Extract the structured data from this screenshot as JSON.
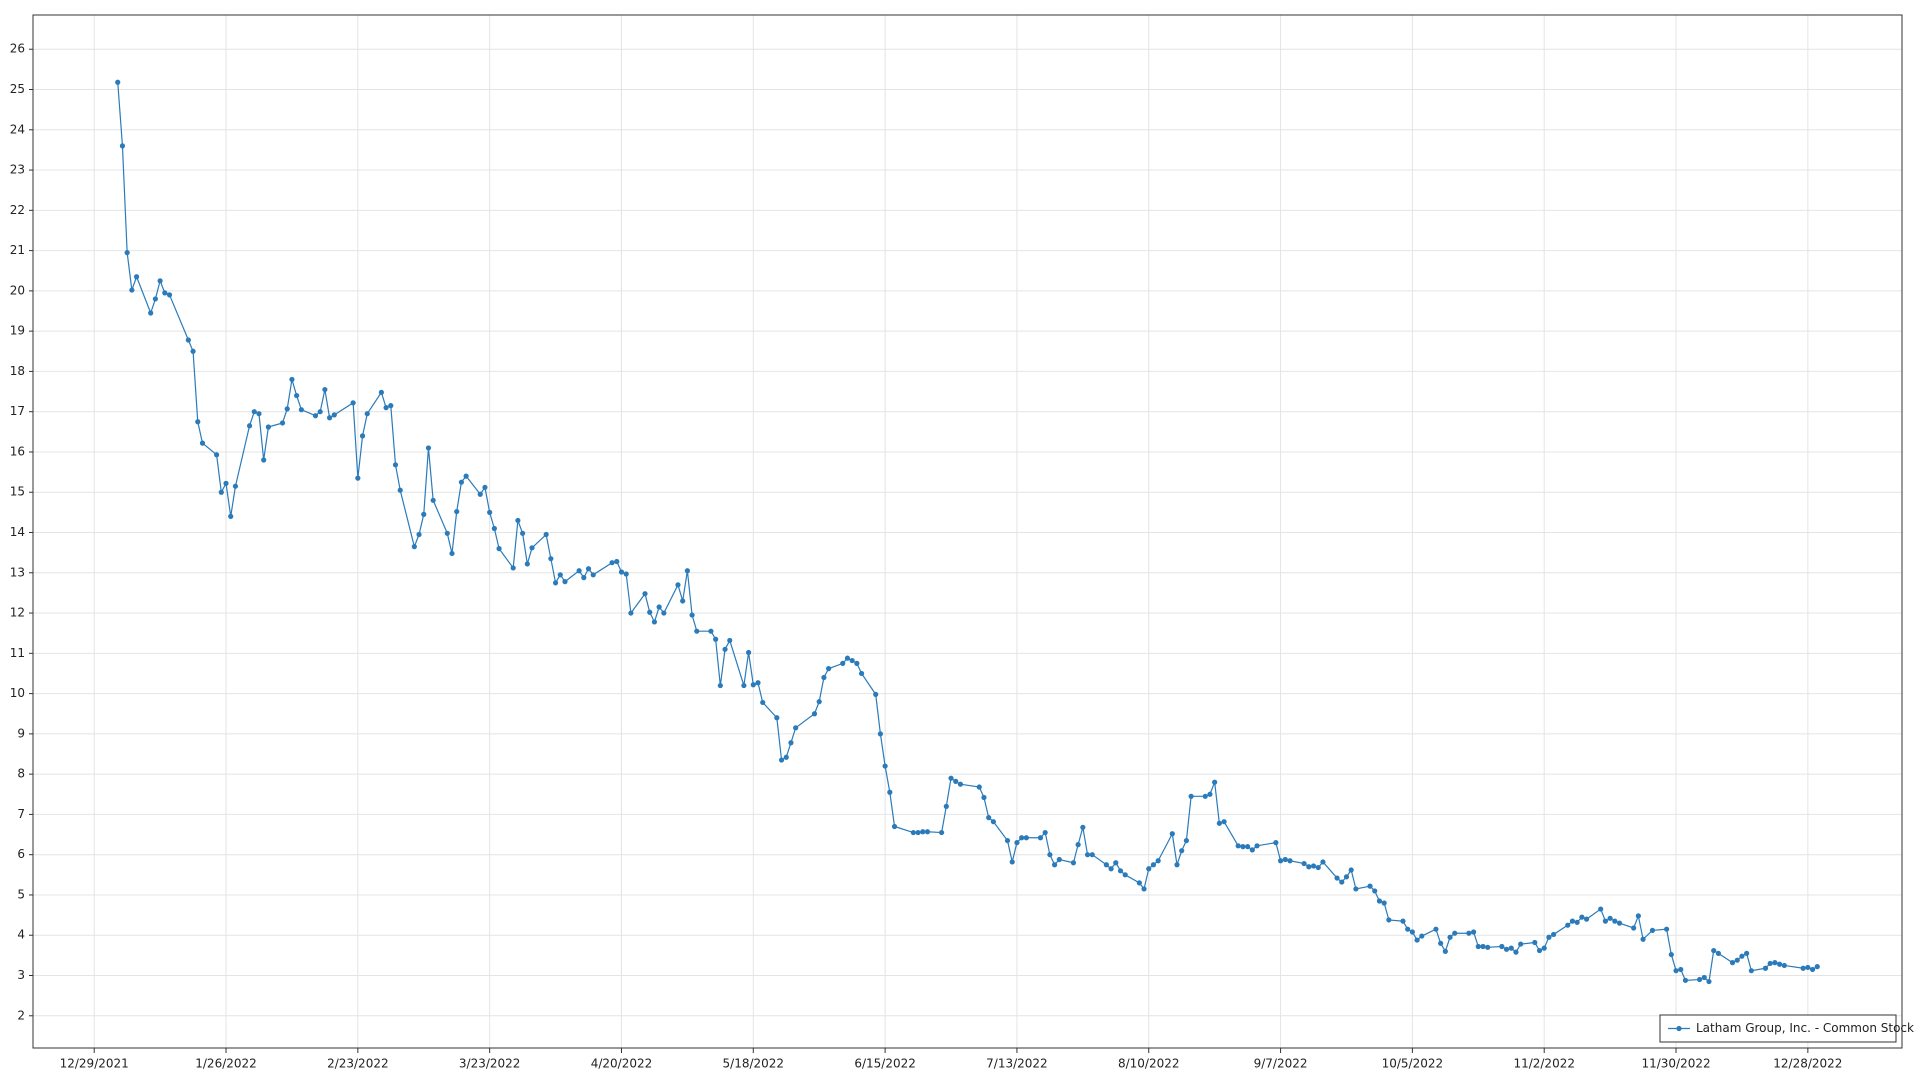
{
  "chart_data": {
    "type": "line",
    "x": [
      "2022-01-03",
      "2022-01-04",
      "2022-01-05",
      "2022-01-06",
      "2022-01-07",
      "2022-01-10",
      "2022-01-11",
      "2022-01-12",
      "2022-01-13",
      "2022-01-14",
      "2022-01-18",
      "2022-01-19",
      "2022-01-20",
      "2022-01-21",
      "2022-01-24",
      "2022-01-25",
      "2022-01-26",
      "2022-01-27",
      "2022-01-28",
      "2022-01-31",
      "2022-02-01",
      "2022-02-02",
      "2022-02-03",
      "2022-02-04",
      "2022-02-07",
      "2022-02-08",
      "2022-02-09",
      "2022-02-10",
      "2022-02-11",
      "2022-02-14",
      "2022-02-15",
      "2022-02-16",
      "2022-02-17",
      "2022-02-18",
      "2022-02-22",
      "2022-02-23",
      "2022-02-24",
      "2022-02-25",
      "2022-02-28",
      "2022-03-01",
      "2022-03-02",
      "2022-03-03",
      "2022-03-04",
      "2022-03-07",
      "2022-03-08",
      "2022-03-09",
      "2022-03-10",
      "2022-03-11",
      "2022-03-14",
      "2022-03-15",
      "2022-03-16",
      "2022-03-17",
      "2022-03-18",
      "2022-03-21",
      "2022-03-22",
      "2022-03-23",
      "2022-03-24",
      "2022-03-25",
      "2022-03-28",
      "2022-03-29",
      "2022-03-30",
      "2022-03-31",
      "2022-04-01",
      "2022-04-04",
      "2022-04-05",
      "2022-04-06",
      "2022-04-07",
      "2022-04-08",
      "2022-04-11",
      "2022-04-12",
      "2022-04-13",
      "2022-04-14",
      "2022-04-18",
      "2022-04-19",
      "2022-04-20",
      "2022-04-21",
      "2022-04-22",
      "2022-04-25",
      "2022-04-26",
      "2022-04-27",
      "2022-04-28",
      "2022-04-29",
      "2022-05-02",
      "2022-05-03",
      "2022-05-04",
      "2022-05-05",
      "2022-05-06",
      "2022-05-09",
      "2022-05-10",
      "2022-05-11",
      "2022-05-12",
      "2022-05-13",
      "2022-05-16",
      "2022-05-17",
      "2022-05-18",
      "2022-05-19",
      "2022-05-20",
      "2022-05-23",
      "2022-05-24",
      "2022-05-25",
      "2022-05-26",
      "2022-05-27",
      "2022-05-31",
      "2022-06-01",
      "2022-06-02",
      "2022-06-03",
      "2022-06-06",
      "2022-06-07",
      "2022-06-08",
      "2022-06-09",
      "2022-06-10",
      "2022-06-13",
      "2022-06-14",
      "2022-06-15",
      "2022-06-16",
      "2022-06-17",
      "2022-06-21",
      "2022-06-22",
      "2022-06-23",
      "2022-06-24",
      "2022-06-27",
      "2022-06-28",
      "2022-06-29",
      "2022-06-30",
      "2022-07-01",
      "2022-07-05",
      "2022-07-06",
      "2022-07-07",
      "2022-07-08",
      "2022-07-11",
      "2022-07-12",
      "2022-07-13",
      "2022-07-14",
      "2022-07-15",
      "2022-07-18",
      "2022-07-19",
      "2022-07-20",
      "2022-07-21",
      "2022-07-22",
      "2022-07-25",
      "2022-07-26",
      "2022-07-27",
      "2022-07-28",
      "2022-07-29",
      "2022-08-01",
      "2022-08-02",
      "2022-08-03",
      "2022-08-04",
      "2022-08-05",
      "2022-08-08",
      "2022-08-09",
      "2022-08-10",
      "2022-08-11",
      "2022-08-12",
      "2022-08-15",
      "2022-08-16",
      "2022-08-17",
      "2022-08-18",
      "2022-08-19",
      "2022-08-22",
      "2022-08-23",
      "2022-08-24",
      "2022-08-25",
      "2022-08-26",
      "2022-08-29",
      "2022-08-30",
      "2022-08-31",
      "2022-09-01",
      "2022-09-02",
      "2022-09-06",
      "2022-09-07",
      "2022-09-08",
      "2022-09-09",
      "2022-09-12",
      "2022-09-13",
      "2022-09-14",
      "2022-09-15",
      "2022-09-16",
      "2022-09-19",
      "2022-09-20",
      "2022-09-21",
      "2022-09-22",
      "2022-09-23",
      "2022-09-26",
      "2022-09-27",
      "2022-09-28",
      "2022-09-29",
      "2022-09-30",
      "2022-10-03",
      "2022-10-04",
      "2022-10-05",
      "2022-10-06",
      "2022-10-07",
      "2022-10-10",
      "2022-10-11",
      "2022-10-12",
      "2022-10-13",
      "2022-10-14",
      "2022-10-17",
      "2022-10-18",
      "2022-10-19",
      "2022-10-20",
      "2022-10-21",
      "2022-10-24",
      "2022-10-25",
      "2022-10-26",
      "2022-10-27",
      "2022-10-28",
      "2022-10-31",
      "2022-11-01",
      "2022-11-02",
      "2022-11-03",
      "2022-11-04",
      "2022-11-07",
      "2022-11-08",
      "2022-11-09",
      "2022-11-10",
      "2022-11-11",
      "2022-11-14",
      "2022-11-15",
      "2022-11-16",
      "2022-11-17",
      "2022-11-18",
      "2022-11-21",
      "2022-11-22",
      "2022-11-23",
      "2022-11-25",
      "2022-11-28",
      "2022-11-29",
      "2022-11-30",
      "2022-12-01",
      "2022-12-02",
      "2022-12-05",
      "2022-12-06",
      "2022-12-07",
      "2022-12-08",
      "2022-12-09",
      "2022-12-12",
      "2022-12-13",
      "2022-12-14",
      "2022-12-15",
      "2022-12-16",
      "2022-12-19",
      "2022-12-20",
      "2022-12-21",
      "2022-12-22",
      "2022-12-23",
      "2022-12-27",
      "2022-12-28",
      "2022-12-29",
      "2022-12-30"
    ],
    "series": [
      {
        "name": "Latham Group, Inc. - Common Stock",
        "color": "#2b7bba",
        "values": [
          25.18,
          23.6,
          20.95,
          20.02,
          20.35,
          19.45,
          19.8,
          20.25,
          19.95,
          19.9,
          18.78,
          18.5,
          16.75,
          16.22,
          15.93,
          15.0,
          15.22,
          14.4,
          15.15,
          16.65,
          17.0,
          16.95,
          15.8,
          16.62,
          16.72,
          17.07,
          17.8,
          17.4,
          17.05,
          16.9,
          17.0,
          17.55,
          16.85,
          16.92,
          17.22,
          15.35,
          16.4,
          16.95,
          17.48,
          17.1,
          17.15,
          15.68,
          15.05,
          13.65,
          13.95,
          14.45,
          16.1,
          14.8,
          13.98,
          13.48,
          14.52,
          15.25,
          15.4,
          14.95,
          15.12,
          14.5,
          14.1,
          13.6,
          13.12,
          14.3,
          13.98,
          13.22,
          13.62,
          13.95,
          13.35,
          12.75,
          12.95,
          12.78,
          13.05,
          12.88,
          13.1,
          12.95,
          13.25,
          13.28,
          13.02,
          12.97,
          12.0,
          12.48,
          12.02,
          11.78,
          12.15,
          12.0,
          12.7,
          12.3,
          13.05,
          11.95,
          11.55,
          11.55,
          11.35,
          10.2,
          11.1,
          11.32,
          10.2,
          11.02,
          10.22,
          10.27,
          9.78,
          9.4,
          8.35,
          8.42,
          8.78,
          9.15,
          9.5,
          9.8,
          10.4,
          10.62,
          10.75,
          10.88,
          10.82,
          10.75,
          10.5,
          9.98,
          9.0,
          8.2,
          7.55,
          6.7,
          6.55,
          6.55,
          6.57,
          6.57,
          6.55,
          7.2,
          7.9,
          7.82,
          7.75,
          7.68,
          7.42,
          6.92,
          6.82,
          6.35,
          5.82,
          6.3,
          6.42,
          6.42,
          6.42,
          6.55,
          6.0,
          5.75,
          5.88,
          5.8,
          6.25,
          6.68,
          6.0,
          6.0,
          5.75,
          5.65,
          5.8,
          5.6,
          5.5,
          5.3,
          5.15,
          5.65,
          5.75,
          5.85,
          6.52,
          5.75,
          6.1,
          6.35,
          7.45,
          7.45,
          7.5,
          7.8,
          6.78,
          6.82,
          6.22,
          6.2,
          6.2,
          6.12,
          6.22,
          6.3,
          5.85,
          5.88,
          5.85,
          5.78,
          5.7,
          5.72,
          5.68,
          5.82,
          5.42,
          5.32,
          5.45,
          5.62,
          5.15,
          5.22,
          5.1,
          4.85,
          4.8,
          4.38,
          4.35,
          4.15,
          4.08,
          3.88,
          3.98,
          4.15,
          3.8,
          3.6,
          3.95,
          4.05,
          4.05,
          4.08,
          3.72,
          3.72,
          3.7,
          3.72,
          3.65,
          3.68,
          3.58,
          3.78,
          3.82,
          3.62,
          3.68,
          3.95,
          4.02,
          4.25,
          4.35,
          4.32,
          4.45,
          4.4,
          4.65,
          4.35,
          4.42,
          4.35,
          4.3,
          4.18,
          4.48,
          3.9,
          4.12,
          4.15,
          3.52,
          3.12,
          3.15,
          2.88,
          2.9,
          2.95,
          2.85,
          3.62,
          3.55,
          3.32,
          3.38,
          3.48,
          3.55,
          3.12,
          3.18,
          3.3,
          3.32,
          3.28,
          3.25,
          3.18,
          3.2,
          3.15,
          3.22
        ]
      }
    ],
    "xlim": [
      "2021-12-16",
      "2023-01-17"
    ],
    "xticks": [
      {
        "value": "2021-12-29",
        "label": "12/29/2021"
      },
      {
        "value": "2022-01-26",
        "label": "1/26/2022"
      },
      {
        "value": "2022-02-23",
        "label": "2/23/2022"
      },
      {
        "value": "2022-03-23",
        "label": "3/23/2022"
      },
      {
        "value": "2022-04-20",
        "label": "4/20/2022"
      },
      {
        "value": "2022-05-18",
        "label": "5/18/2022"
      },
      {
        "value": "2022-06-15",
        "label": "6/15/2022"
      },
      {
        "value": "2022-07-13",
        "label": "7/13/2022"
      },
      {
        "value": "2022-08-10",
        "label": "8/10/2022"
      },
      {
        "value": "2022-09-07",
        "label": "9/7/2022"
      },
      {
        "value": "2022-10-05",
        "label": "10/5/2022"
      },
      {
        "value": "2022-11-02",
        "label": "11/2/2022"
      },
      {
        "value": "2022-11-30",
        "label": "11/30/2022"
      },
      {
        "value": "2022-12-28",
        "label": "12/28/2022"
      }
    ],
    "ylim": [
      1.2,
      26.85
    ],
    "yticks": [
      2,
      3,
      4,
      5,
      6,
      7,
      8,
      9,
      10,
      11,
      12,
      13,
      14,
      15,
      16,
      17,
      18,
      19,
      20,
      21,
      22,
      23,
      24,
      25,
      26
    ],
    "grid": true,
    "legend": "lower right"
  }
}
